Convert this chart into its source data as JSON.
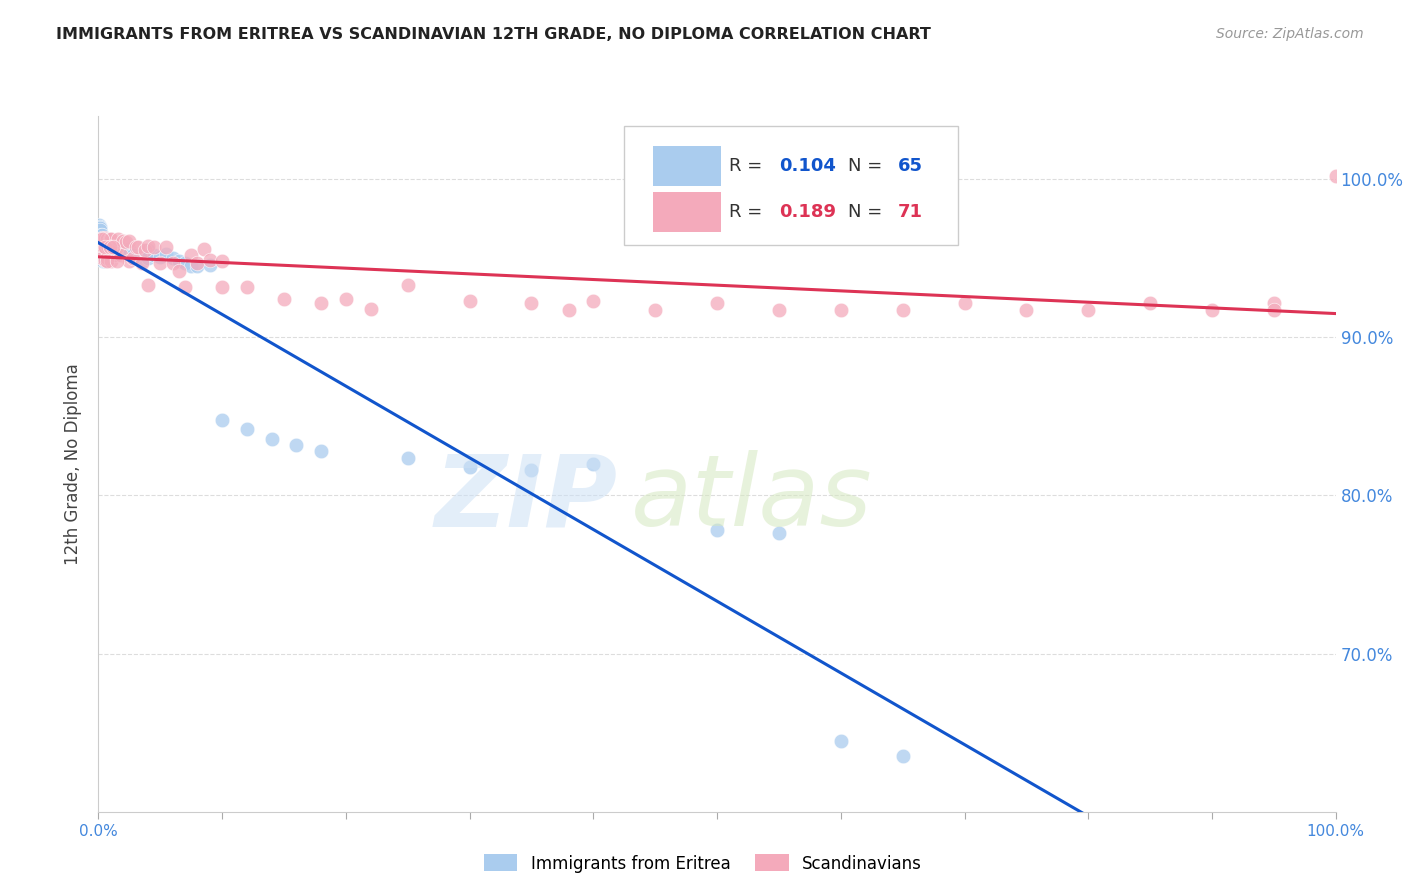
{
  "title": "IMMIGRANTS FROM ERITREA VS SCANDINAVIAN 12TH GRADE, NO DIPLOMA CORRELATION CHART",
  "source": "Source: ZipAtlas.com",
  "ylabel": "12th Grade, No Diploma",
  "legend_label1": "Immigrants from Eritrea",
  "legend_label2": "Scandinavians",
  "r1": 0.104,
  "n1": 65,
  "r2": 0.189,
  "n2": 71,
  "color_eritrea": "#aaccee",
  "color_scandinavian": "#f4aabb",
  "color_line_eritrea": "#1155cc",
  "color_line_scandinavian": "#dd3355",
  "color_axis_labels": "#4488dd",
  "color_grid": "#dddddd",
  "ytick_labels": [
    "100.0%",
    "90.0%",
    "80.0%",
    "70.0%"
  ],
  "ytick_values": [
    1.0,
    0.9,
    0.8,
    0.7
  ],
  "xmin": 0.0,
  "xmax": 1.0,
  "ymin": 0.6,
  "ymax": 1.04,
  "eritrea_x": [
    0.0008,
    0.001,
    0.001,
    0.0015,
    0.002,
    0.002,
    0.002,
    0.003,
    0.003,
    0.003,
    0.003,
    0.004,
    0.004,
    0.004,
    0.004,
    0.005,
    0.005,
    0.005,
    0.005,
    0.006,
    0.006,
    0.007,
    0.007,
    0.008,
    0.008,
    0.009,
    0.009,
    0.01,
    0.01,
    0.012,
    0.013,
    0.015,
    0.018,
    0.02,
    0.022,
    0.025,
    0.028,
    0.03,
    0.035,
    0.04,
    0.04,
    0.045,
    0.05,
    0.055,
    0.06,
    0.065,
    0.07,
    0.075,
    0.08,
    0.09,
    0.1,
    0.12,
    0.14,
    0.16,
    0.18,
    0.25,
    0.3,
    0.35,
    0.4,
    0.5,
    0.55,
    0.6,
    0.65,
    0.003,
    0.002
  ],
  "eritrea_y": [
    0.971,
    0.97,
    0.969,
    0.968,
    0.965,
    0.962,
    0.958,
    0.96,
    0.957,
    0.953,
    0.95,
    0.962,
    0.957,
    0.953,
    0.948,
    0.96,
    0.957,
    0.953,
    0.948,
    0.957,
    0.952,
    0.957,
    0.952,
    0.958,
    0.952,
    0.957,
    0.951,
    0.958,
    0.951,
    0.955,
    0.958,
    0.956,
    0.954,
    0.956,
    0.954,
    0.956,
    0.952,
    0.95,
    0.948,
    0.955,
    0.95,
    0.952,
    0.951,
    0.953,
    0.95,
    0.948,
    0.947,
    0.945,
    0.945,
    0.946,
    0.848,
    0.842,
    0.836,
    0.832,
    0.828,
    0.824,
    0.818,
    0.816,
    0.82,
    0.778,
    0.776,
    0.645,
    0.635,
    0.965,
    0.962
  ],
  "scandinavian_x": [
    0.001,
    0.002,
    0.003,
    0.003,
    0.004,
    0.005,
    0.005,
    0.006,
    0.007,
    0.007,
    0.008,
    0.009,
    0.01,
    0.01,
    0.012,
    0.013,
    0.015,
    0.016,
    0.018,
    0.02,
    0.022,
    0.025,
    0.025,
    0.028,
    0.03,
    0.032,
    0.035,
    0.038,
    0.04,
    0.04,
    0.045,
    0.05,
    0.055,
    0.06,
    0.065,
    0.07,
    0.075,
    0.08,
    0.085,
    0.09,
    0.1,
    0.1,
    0.12,
    0.15,
    0.18,
    0.2,
    0.22,
    0.25,
    0.3,
    0.35,
    0.38,
    0.4,
    0.45,
    0.5,
    0.55,
    0.6,
    0.65,
    0.7,
    0.75,
    0.8,
    0.85,
    0.9,
    0.95,
    0.95,
    1.0,
    0.003,
    0.005,
    0.007,
    0.009,
    0.012,
    0.015
  ],
  "scandinavian_y": [
    0.96,
    0.957,
    0.963,
    0.95,
    0.958,
    0.963,
    0.949,
    0.959,
    0.962,
    0.95,
    0.957,
    0.962,
    0.962,
    0.948,
    0.958,
    0.952,
    0.957,
    0.962,
    0.952,
    0.961,
    0.96,
    0.961,
    0.948,
    0.95,
    0.957,
    0.957,
    0.947,
    0.955,
    0.958,
    0.933,
    0.957,
    0.947,
    0.957,
    0.947,
    0.942,
    0.932,
    0.952,
    0.947,
    0.956,
    0.949,
    0.932,
    0.948,
    0.932,
    0.924,
    0.922,
    0.924,
    0.918,
    0.933,
    0.923,
    0.922,
    0.917,
    0.923,
    0.917,
    0.922,
    0.917,
    0.917,
    0.917,
    0.922,
    0.917,
    0.917,
    0.922,
    0.917,
    0.922,
    0.917,
    1.002,
    0.962,
    0.957,
    0.948,
    0.957,
    0.957,
    0.948
  ]
}
